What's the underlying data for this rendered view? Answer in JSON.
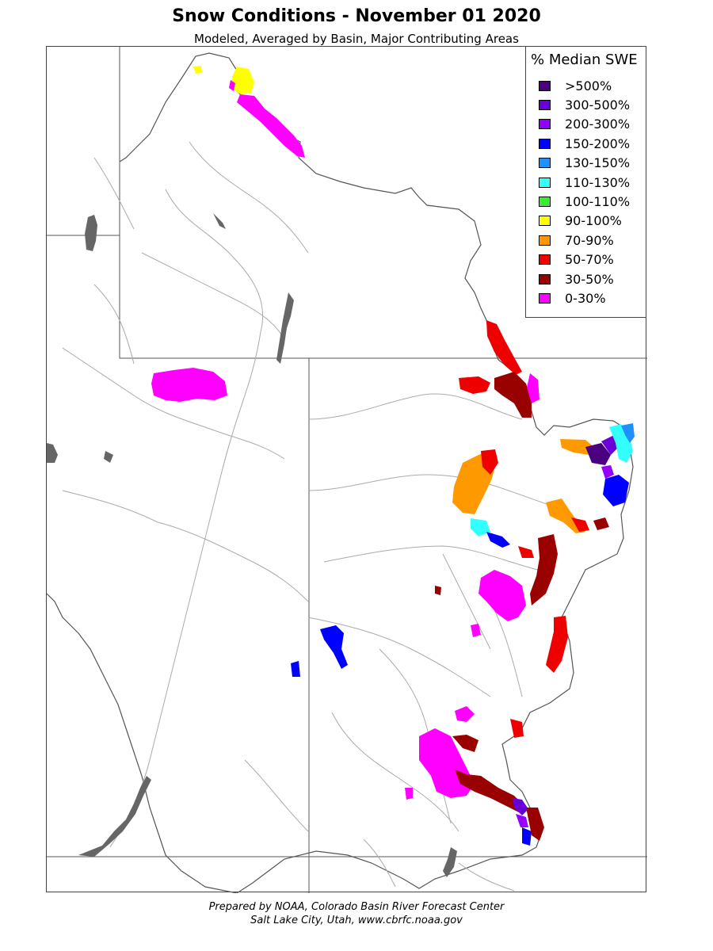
{
  "title": "Snow Conditions - November 01 2020",
  "subtitle": "Modeled, Averaged by Basin, Major Contributing Areas",
  "legend": {
    "title": "% Median SWE",
    "items": [
      {
        "label": ">500%",
        "color": "#4b0082"
      },
      {
        "label": "300-500%",
        "color": "#6a00d8"
      },
      {
        "label": "200-300%",
        "color": "#9400ff"
      },
      {
        "label": "150-200%",
        "color": "#0000ff"
      },
      {
        "label": "130-150%",
        "color": "#1e90ff"
      },
      {
        "label": "110-130%",
        "color": "#33ffff"
      },
      {
        "label": "100-110%",
        "color": "#33ee33"
      },
      {
        "label": "90-100%",
        "color": "#ffff00"
      },
      {
        "label": "70-90%",
        "color": "#ff9900"
      },
      {
        "label": "50-70%",
        "color": "#ee0000"
      },
      {
        "label": "30-50%",
        "color": "#990000"
      },
      {
        "label": "0-30%",
        "color": "#ff00ff"
      }
    ]
  },
  "credits": {
    "line1": "Prepared by NOAA, Colorado Basin River Forecast Center",
    "line2": "Salt Lake City, Utah, www.cbrfc.noaa.gov"
  }
}
